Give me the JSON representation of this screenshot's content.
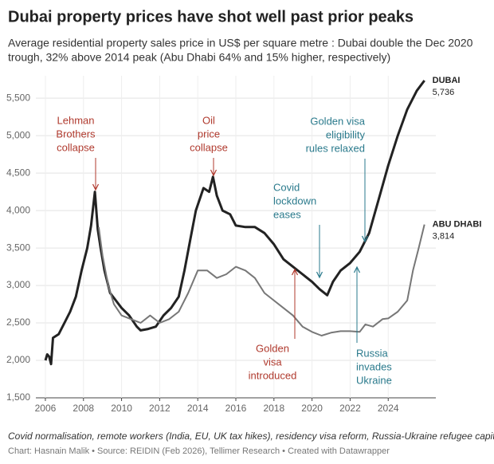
{
  "chart_data": {
    "type": "line",
    "title": "Dubai property prices have shot well past prior peaks",
    "subtitle": [
      "Average residential property sales price in US$ per square metre : Dubai double the Dec 2020",
      "trough, 32% above 2014 peak (Abu Dhabi 64% and 15% higher, respectively)"
    ],
    "xlim": [
      2005.5,
      2026.5
    ],
    "xticks": [
      2006,
      2008,
      2010,
      2012,
      2014,
      2016,
      2018,
      2020,
      2022,
      2024
    ],
    "ylim": [
      1500,
      5800
    ],
    "yticks": [
      {
        "value": 1500,
        "label": "1,500"
      },
      {
        "value": 2000,
        "label": "2,000"
      },
      {
        "value": 2500,
        "label": "2,500"
      },
      {
        "value": 3000,
        "label": "3,000"
      },
      {
        "value": 3500,
        "label": "3,500"
      },
      {
        "value": 4000,
        "label": "4,000"
      },
      {
        "value": 4500,
        "label": "4,500"
      },
      {
        "value": 5000,
        "label": "5,000"
      },
      {
        "value": 5500,
        "label": "5,500"
      }
    ],
    "grid": true,
    "series": [
      {
        "name": "DUBAI",
        "color": "#222222",
        "x": [
          2006.0,
          2006.1,
          2006.2,
          2006.3,
          2006.4,
          2006.7,
          2007.0,
          2007.3,
          2007.6,
          2007.9,
          2008.2,
          2008.4,
          2008.6,
          2008.75,
          2008.9,
          2009.1,
          2009.4,
          2009.7,
          2010.0,
          2010.4,
          2010.8,
          2011.0,
          2011.4,
          2011.8,
          2012.2,
          2012.6,
          2013.0,
          2013.3,
          2013.6,
          2013.9,
          2014.3,
          2014.6,
          2014.8,
          2015.0,
          2015.3,
          2015.7,
          2016.0,
          2016.5,
          2017.0,
          2017.5,
          2018.0,
          2018.5,
          2019.0,
          2019.5,
          2020.0,
          2020.4,
          2020.8,
          2021.1,
          2021.5,
          2022.0,
          2022.5,
          2023.0,
          2023.5,
          2024.0,
          2024.5,
          2025.0,
          2025.5,
          2025.9
        ],
        "values": [
          2000,
          2080,
          2050,
          1950,
          2300,
          2350,
          2500,
          2650,
          2850,
          3200,
          3500,
          3800,
          4250,
          3750,
          3500,
          3200,
          2900,
          2800,
          2700,
          2600,
          2450,
          2400,
          2420,
          2450,
          2600,
          2700,
          2850,
          3200,
          3600,
          4000,
          4300,
          4250,
          4450,
          4200,
          4000,
          3950,
          3800,
          3780,
          3780,
          3700,
          3550,
          3350,
          3250,
          3150,
          3050,
          2950,
          2870,
          3050,
          3200,
          3300,
          3450,
          3700,
          4150,
          4600,
          5000,
          5350,
          5600,
          5736
        ],
        "value_labels": [
          null,
          null,
          null,
          null,
          null,
          null,
          null,
          null,
          null,
          null,
          null,
          null,
          null,
          null,
          null,
          null,
          null,
          null,
          null,
          null,
          null,
          null,
          null,
          null,
          null,
          null,
          null,
          null,
          null,
          null,
          null,
          null,
          null,
          null,
          null,
          null,
          null,
          null,
          null,
          null,
          null,
          null,
          null,
          null,
          null,
          null,
          null,
          null,
          null,
          null,
          null,
          null,
          null,
          null,
          null,
          null,
          null,
          "5,736"
        ]
      },
      {
        "name": "ABU DHABI",
        "color": "#777777",
        "x": [
          2008.8,
          2009.0,
          2009.3,
          2009.6,
          2010.0,
          2010.5,
          2011.0,
          2011.5,
          2012.0,
          2012.5,
          2013.0,
          2013.5,
          2014.0,
          2014.5,
          2015.0,
          2015.5,
          2016.0,
          2016.5,
          2017.0,
          2017.5,
          2018.0,
          2018.5,
          2019.0,
          2019.5,
          2020.0,
          2020.5,
          2021.0,
          2021.5,
          2022.0,
          2022.5,
          2022.8,
          2023.2,
          2023.7,
          2024.0,
          2024.5,
          2025.0,
          2025.3,
          2025.6,
          2025.9
        ],
        "values": [
          3780,
          3400,
          3000,
          2750,
          2600,
          2550,
          2500,
          2600,
          2500,
          2550,
          2650,
          2900,
          3200,
          3200,
          3100,
          3150,
          3250,
          3200,
          3100,
          2900,
          2800,
          2700,
          2600,
          2450,
          2380,
          2330,
          2370,
          2390,
          2390,
          2380,
          2480,
          2450,
          2550,
          2560,
          2650,
          2800,
          3200,
          3500,
          3814
        ],
        "value_labels": [
          null,
          null,
          null,
          null,
          null,
          null,
          null,
          null,
          null,
          null,
          null,
          null,
          null,
          null,
          null,
          null,
          null,
          null,
          null,
          null,
          null,
          null,
          null,
          null,
          null,
          null,
          null,
          null,
          null,
          null,
          null,
          null,
          null,
          null,
          null,
          null,
          null,
          null,
          "3,814"
        ]
      }
    ],
    "annotations": [
      {
        "lines": [
          "Lehman",
          "Brothers",
          "collapse"
        ],
        "color": "#b03a2e"
      },
      {
        "lines": [
          "Oil",
          "price",
          "collapse"
        ],
        "color": "#b03a2e"
      },
      {
        "lines": [
          "Covid",
          "lockdown",
          "eases"
        ],
        "color": "#2a7a8c"
      },
      {
        "lines": [
          "Golden visa",
          "eligibility",
          "rules relaxed"
        ],
        "color": "#2a7a8c"
      },
      {
        "lines": [
          "Golden",
          "visa",
          "introduced"
        ],
        "color": "#b03a2e"
      },
      {
        "lines": [
          "Russia",
          "invades",
          "Ukraine"
        ],
        "color": "#2a7a8c"
      }
    ],
    "notes": "Covid normalisation, remote workers (India, EU, UK tax hikes), residency visa reform, Russia-Ukraine refugee capital",
    "source": "Chart: Hasnain Malik • Source: REIDIN (Feb 2026), Tellimer Research • Created with Datawrapper"
  }
}
